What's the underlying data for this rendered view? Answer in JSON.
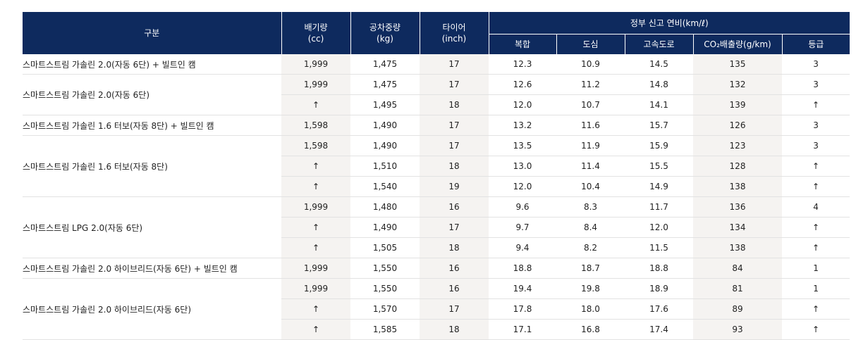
{
  "header": {
    "category": "구분",
    "displacement": [
      "배기량",
      "(cc)"
    ],
    "curb_weight": [
      "공차중량",
      "(kg)"
    ],
    "tire": [
      "타이어",
      "(inch)"
    ],
    "fuel_economy_group": "정부 신고 연비(km/ℓ)",
    "combined": "복합",
    "city": "도심",
    "highway": "고속도로",
    "co2": "CO₂배출량(g/km)",
    "grade": "등급"
  },
  "rows": [
    {
      "name": "스마트스트림 가솔린 2.0(자동 6단) + 빌트인 캠",
      "span": 1,
      "cells": [
        "1,999",
        "1,475",
        "17",
        "12.3",
        "10.9",
        "14.5",
        "135",
        "3"
      ]
    },
    {
      "name": "스마트스트림 가솔린 2.0(자동 6단)",
      "span": 2,
      "cells": [
        "1,999",
        "1,475",
        "17",
        "12.6",
        "11.2",
        "14.8",
        "132",
        "3"
      ]
    },
    {
      "cells": [
        "↑",
        "1,495",
        "18",
        "12.0",
        "10.7",
        "14.1",
        "139",
        "↑"
      ]
    },
    {
      "name": "스마트스트림 가솔린 1.6 터보(자동 8단) + 빌트인 캠",
      "span": 1,
      "cells": [
        "1,598",
        "1,490",
        "17",
        "13.2",
        "11.6",
        "15.7",
        "126",
        "3"
      ]
    },
    {
      "name": "스마트스트림 가솔린 1.6 터보(자동 8단)",
      "span": 3,
      "cells": [
        "1,598",
        "1,490",
        "17",
        "13.5",
        "11.9",
        "15.9",
        "123",
        "3"
      ]
    },
    {
      "cells": [
        "↑",
        "1,510",
        "18",
        "13.0",
        "11.4",
        "15.5",
        "128",
        "↑"
      ]
    },
    {
      "cells": [
        "↑",
        "1,540",
        "19",
        "12.0",
        "10.4",
        "14.9",
        "138",
        "↑"
      ]
    },
    {
      "name": "스마트스트림 LPG 2.0(자동 6단)",
      "span": 3,
      "cells": [
        "1,999",
        "1,480",
        "16",
        "9.6",
        "8.3",
        "11.7",
        "136",
        "4"
      ]
    },
    {
      "cells": [
        "↑",
        "1,490",
        "17",
        "9.7",
        "8.4",
        "12.0",
        "134",
        "↑"
      ]
    },
    {
      "cells": [
        "↑",
        "1,505",
        "18",
        "9.4",
        "8.2",
        "11.5",
        "138",
        "↑"
      ]
    },
    {
      "name": "스마트스트림 가솔린 2.0 하이브리드(자동 6단) + 빌트인 캠",
      "span": 1,
      "cells": [
        "1,999",
        "1,550",
        "16",
        "18.8",
        "18.7",
        "18.8",
        "84",
        "1"
      ]
    },
    {
      "name": "스마트스트림 가솔린 2.0 하이브리드(자동 6단)",
      "span": 3,
      "cells": [
        "1,999",
        "1,550",
        "16",
        "19.4",
        "19.8",
        "18.9",
        "81",
        "1"
      ]
    },
    {
      "cells": [
        "↑",
        "1,570",
        "17",
        "17.8",
        "18.0",
        "17.6",
        "89",
        "↑"
      ]
    },
    {
      "cells": [
        "↑",
        "1,585",
        "18",
        "17.1",
        "16.8",
        "17.4",
        "93",
        "↑"
      ]
    }
  ]
}
